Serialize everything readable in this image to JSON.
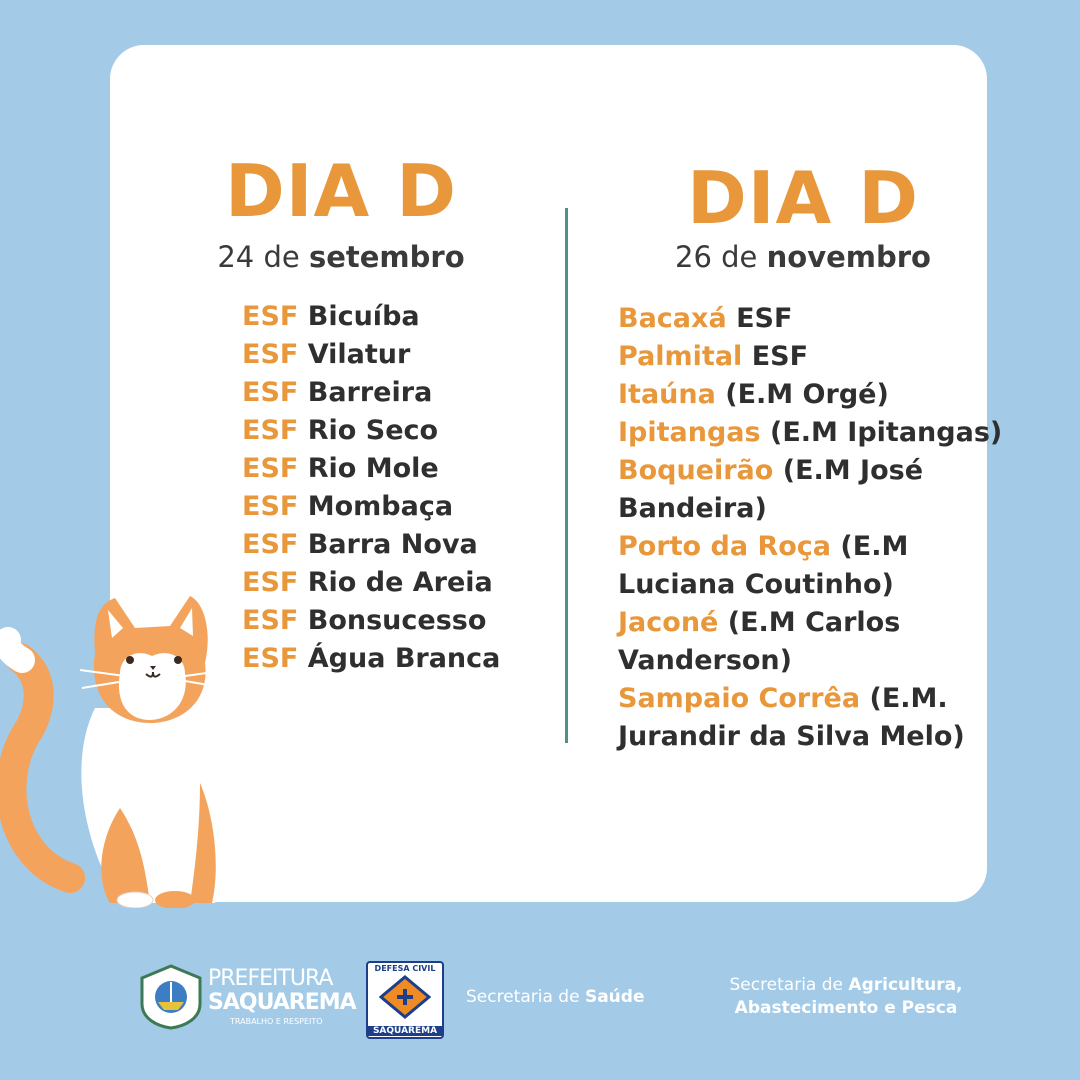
{
  "left": {
    "title": "DIA D",
    "date_number": "24 de",
    "date_month": "setembro",
    "items": [
      {
        "prefix": "ESF",
        "name": "Bicuíba"
      },
      {
        "prefix": "ESF",
        "name": "Vilatur"
      },
      {
        "prefix": "ESF",
        "name": "Barreira"
      },
      {
        "prefix": "ESF",
        "name": "Rio Seco"
      },
      {
        "prefix": "ESF",
        "name": "Rio Mole"
      },
      {
        "prefix": "ESF",
        "name": "Mombaça"
      },
      {
        "prefix": "ESF",
        "name": "Barra Nova"
      },
      {
        "prefix": "ESF",
        "name": "Rio de Areia"
      },
      {
        "prefix": "ESF",
        "name": "Bonsucesso"
      },
      {
        "prefix": "ESF",
        "name": "Água Branca"
      }
    ]
  },
  "right": {
    "title": "DIA D",
    "date_number": "26 de",
    "date_month": "novembro",
    "lines": [
      {
        "orange": "Bacaxá",
        "dark": " ESF"
      },
      {
        "orange": "Palmital",
        "dark": " ESF"
      },
      {
        "orange": "Itaúna",
        "dark": " (E.M Orgé)"
      },
      {
        "orange": "Ipitangas",
        "dark": " (E.M Ipitangas)"
      },
      {
        "orange": "Boqueirão",
        "dark": " (E.M José"
      },
      {
        "orange": "",
        "dark": "Bandeira)"
      },
      {
        "orange": "Porto da Roça",
        "dark": " (E.M"
      },
      {
        "orange": "",
        "dark": "Luciana Coutinho)"
      },
      {
        "orange": "Jaconé",
        "dark": " (E.M Carlos"
      },
      {
        "orange": "",
        "dark": "Vanderson)"
      },
      {
        "orange": "Sampaio Corrêa",
        "dark": " (E.M."
      },
      {
        "orange": "",
        "dark": "Jurandir da Silva Melo)"
      }
    ]
  },
  "footer": {
    "prefeitura_line1": "PREFEITURA",
    "prefeitura_line2": "SAQUAREMA",
    "prefeitura_tagline": "TRABALHO E RESPEITO",
    "defesa_top": "DEFESA CIVIL",
    "defesa_bottom": "SAQUAREMA",
    "saude_prefix": "Secretaria de ",
    "saude_bold": "Saúde",
    "agri_prefix": "Secretaria de ",
    "agri_bold1": "Agricultura,",
    "agri_bold2": "Abastecimento e Pesca"
  }
}
